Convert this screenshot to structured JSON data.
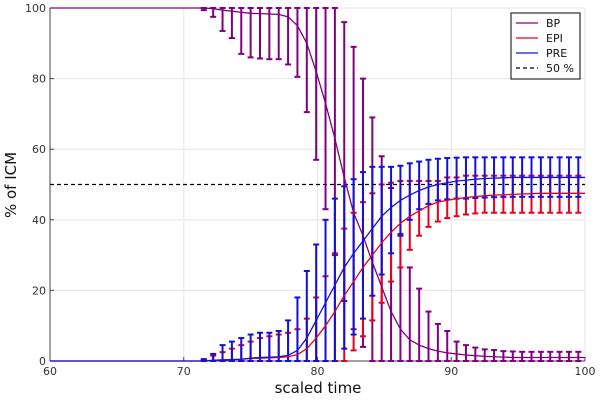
{
  "chart_data": {
    "type": "line",
    "xlabel": "scaled time",
    "ylabel": "% of ICM",
    "xlim": [
      60,
      100
    ],
    "ylim": [
      0,
      100
    ],
    "xticks": [
      "60",
      "70",
      "80",
      "90",
      "100"
    ],
    "yticks": [
      "0",
      "20",
      "40",
      "60",
      "80",
      "100"
    ],
    "grid": true,
    "legend_position": "top-right",
    "reference_line": {
      "name": "50 %",
      "y": 50,
      "color": "#000000",
      "style": "dashed"
    },
    "series": [
      {
        "name": "BP",
        "color": "#800080",
        "x": [
          60,
          65,
          70,
          71.5,
          72.2,
          72.9,
          73.6,
          74.3,
          75,
          75.7,
          76.4,
          77.1,
          77.8,
          78.5,
          79.2,
          79.9,
          80.6,
          81.3,
          82,
          82.7,
          83.4,
          84.1,
          84.8,
          85.5,
          86.2,
          86.9,
          87.6,
          88.3,
          89,
          89.7,
          90.4,
          91.1,
          91.8,
          92.5,
          93.2,
          93.9,
          94.6,
          95.3,
          96,
          96.7,
          97.4,
          98.1,
          98.8,
          99.5,
          100
        ],
        "y": [
          100,
          100,
          100,
          100,
          99.8,
          99.4,
          99.1,
          98.8,
          98.5,
          98.4,
          98.3,
          98.2,
          97.5,
          95,
          90,
          82,
          73,
          63,
          52,
          42,
          35.5,
          28,
          21,
          14,
          9,
          6,
          4.5,
          3.5,
          2.8,
          2.3,
          2,
          1.7,
          1.5,
          1.3,
          1.2,
          1.1,
          1,
          1,
          1,
          1,
          1,
          1,
          1,
          1,
          1
        ],
        "err_x": [
          71.5,
          72.2,
          72.9,
          73.6,
          74.3,
          75,
          75.7,
          76.4,
          77.1,
          77.8,
          78.5,
          79.2,
          79.9,
          80.6,
          81.3,
          82,
          82.7,
          83.4,
          84.1,
          84.8,
          85.5,
          86.2,
          86.9,
          87.6,
          88.3,
          89,
          89.7,
          90.4,
          91.1,
          91.8,
          92.5,
          93.2,
          93.9,
          94.6,
          95.3,
          96,
          96.7,
          97.4,
          98.1,
          98.8,
          99.5
        ],
        "err_low": [
          99.4,
          97.5,
          93.5,
          91.5,
          87,
          86,
          85.7,
          85.5,
          85.5,
          84,
          80.5,
          70.5,
          57,
          43,
          30,
          17,
          9,
          4,
          0,
          0,
          0,
          0,
          0,
          0,
          0,
          0,
          0,
          0,
          0,
          0,
          0,
          0,
          0,
          0,
          0,
          0,
          0,
          0,
          0,
          0,
          0
        ],
        "err_high": [
          100,
          100,
          100,
          100,
          100,
          100,
          100,
          100,
          100,
          100,
          100,
          100,
          100,
          100,
          100,
          96,
          89,
          80,
          69,
          58,
          49,
          36,
          26.5,
          20.5,
          14,
          10.5,
          8.5,
          5.5,
          4.5,
          3.8,
          3.3,
          3.1,
          2.8,
          2.7,
          2.6,
          2.6,
          2.6,
          2.6,
          2.6,
          2.6,
          2.6
        ]
      },
      {
        "name": "EPI",
        "color": "#e8001c",
        "x": [
          60,
          65,
          70,
          71.5,
          72.2,
          72.9,
          73.6,
          74.3,
          75,
          75.7,
          76.4,
          77.1,
          77.8,
          78.5,
          79.2,
          79.9,
          80.6,
          81.3,
          82,
          82.7,
          83.4,
          84.1,
          84.8,
          85.5,
          86.2,
          86.9,
          87.6,
          88.3,
          89,
          89.7,
          90.4,
          91.1,
          91.8,
          92.5,
          93.2,
          93.9,
          94.6,
          95.3,
          96,
          96.7,
          97.4,
          98.1,
          98.8,
          99.5,
          100
        ],
        "y": [
          0,
          0,
          0,
          0,
          0.2,
          0.3,
          0.4,
          0.5,
          0.7,
          0.8,
          0.9,
          1,
          1.2,
          1.8,
          3.5,
          6.5,
          10,
          14,
          18.5,
          22.5,
          26.5,
          30,
          33.5,
          36.5,
          39,
          41,
          42.5,
          44,
          45,
          45.5,
          46,
          46.3,
          46.6,
          46.8,
          47,
          47.1,
          47.2,
          47.3,
          47.4,
          47.5,
          47.5,
          47.5,
          47.5,
          47.5,
          47.5
        ],
        "err_x": [
          71.5,
          72.2,
          72.9,
          73.6,
          74.3,
          75,
          75.7,
          76.4,
          77.1,
          77.8,
          78.5,
          79.2,
          79.9,
          80.6,
          81.3,
          82,
          82.7,
          83.4,
          84.1,
          84.8,
          85.5,
          86.2,
          86.9,
          87.6,
          88.3,
          89,
          89.7,
          90.4,
          91.1,
          91.8,
          92.5,
          93.2,
          93.9,
          94.6,
          95.3,
          96,
          96.7,
          97.4,
          98.1,
          98.8,
          99.5
        ],
        "err_low": [
          0,
          0,
          0,
          0,
          0,
          0,
          0,
          0,
          0,
          0,
          0,
          0,
          0,
          0,
          0,
          0,
          3,
          7,
          11.5,
          16.5,
          22.5,
          26.5,
          31.5,
          35.5,
          38,
          39.5,
          40.5,
          41,
          41.5,
          41.8,
          42,
          42,
          42,
          42,
          42,
          42,
          42,
          42,
          42,
          42,
          42
        ],
        "err_high": [
          0.5,
          1.5,
          2.5,
          3.5,
          4.5,
          5.5,
          6.5,
          7,
          7.5,
          8,
          9,
          12,
          18,
          24,
          30.5,
          37.5,
          42,
          45,
          47.5,
          50,
          50.5,
          51,
          51,
          51,
          51,
          51,
          52,
          52,
          52.5,
          52.5,
          52.5,
          52.5,
          52.5,
          52.5,
          52.5,
          52.5,
          52.5,
          52.5,
          52.5,
          52.5,
          52.5
        ]
      },
      {
        "name": "PRE",
        "color": "#1010dd",
        "x": [
          60,
          65,
          70,
          71.5,
          72.2,
          72.9,
          73.6,
          74.3,
          75,
          75.7,
          76.4,
          77.1,
          77.8,
          78.5,
          79.2,
          79.9,
          80.6,
          81.3,
          82,
          82.7,
          83.4,
          84.1,
          84.8,
          85.5,
          86.2,
          86.9,
          87.6,
          88.3,
          89,
          89.7,
          90.4,
          91.1,
          91.8,
          92.5,
          93.2,
          93.9,
          94.6,
          95.3,
          96,
          96.7,
          97.4,
          98.1,
          98.8,
          99.5,
          100
        ],
        "y": [
          0,
          0,
          0,
          0,
          0.2,
          0.3,
          0.4,
          0.5,
          0.8,
          1,
          1.1,
          1.2,
          1.6,
          3,
          6.5,
          11.5,
          16.5,
          21.5,
          26.5,
          30.5,
          34,
          37.5,
          41,
          43.5,
          45.5,
          47,
          48.3,
          49.3,
          50,
          50.5,
          51,
          51.2,
          51.5,
          51.7,
          51.8,
          51.9,
          52,
          52,
          52,
          52,
          52,
          52,
          52,
          52,
          52
        ],
        "err_x": [
          71.5,
          72.2,
          72.9,
          73.6,
          74.3,
          75,
          75.7,
          76.4,
          77.1,
          77.8,
          78.5,
          79.2,
          79.9,
          80.6,
          81.3,
          82,
          82.7,
          83.4,
          84.1,
          84.8,
          85.5,
          86.2,
          86.9,
          87.6,
          88.3,
          89,
          89.7,
          90.4,
          91.1,
          91.8,
          92.5,
          93.2,
          93.9,
          94.6,
          95.3,
          96,
          96.7,
          97.4,
          98.1,
          98.8,
          99.5
        ],
        "err_low": [
          0,
          0,
          0,
          0,
          0,
          0,
          0,
          0,
          0,
          0,
          0,
          0,
          0,
          0,
          0,
          3.5,
          7.5,
          12,
          18.5,
          24.5,
          30.5,
          35.5,
          40,
          43,
          44.5,
          45.5,
          45.8,
          46,
          46,
          46.2,
          46.3,
          46.4,
          46.5,
          46.5,
          46.5,
          46.5,
          46.5,
          46.5,
          46.5,
          46.5,
          46.5
        ],
        "err_high": [
          0.5,
          2,
          4.5,
          5.5,
          6.5,
          7.5,
          8,
          8,
          8.5,
          11.5,
          18,
          25.5,
          33,
          40,
          46,
          49.5,
          51.5,
          53.5,
          55,
          55,
          55,
          55.3,
          56,
          56.5,
          57,
          57.3,
          57.5,
          57.6,
          57.7,
          57.7,
          57.7,
          57.7,
          57.7,
          57.7,
          57.7,
          57.7,
          57.7,
          57.7,
          57.7,
          57.7,
          57.7
        ]
      }
    ]
  }
}
